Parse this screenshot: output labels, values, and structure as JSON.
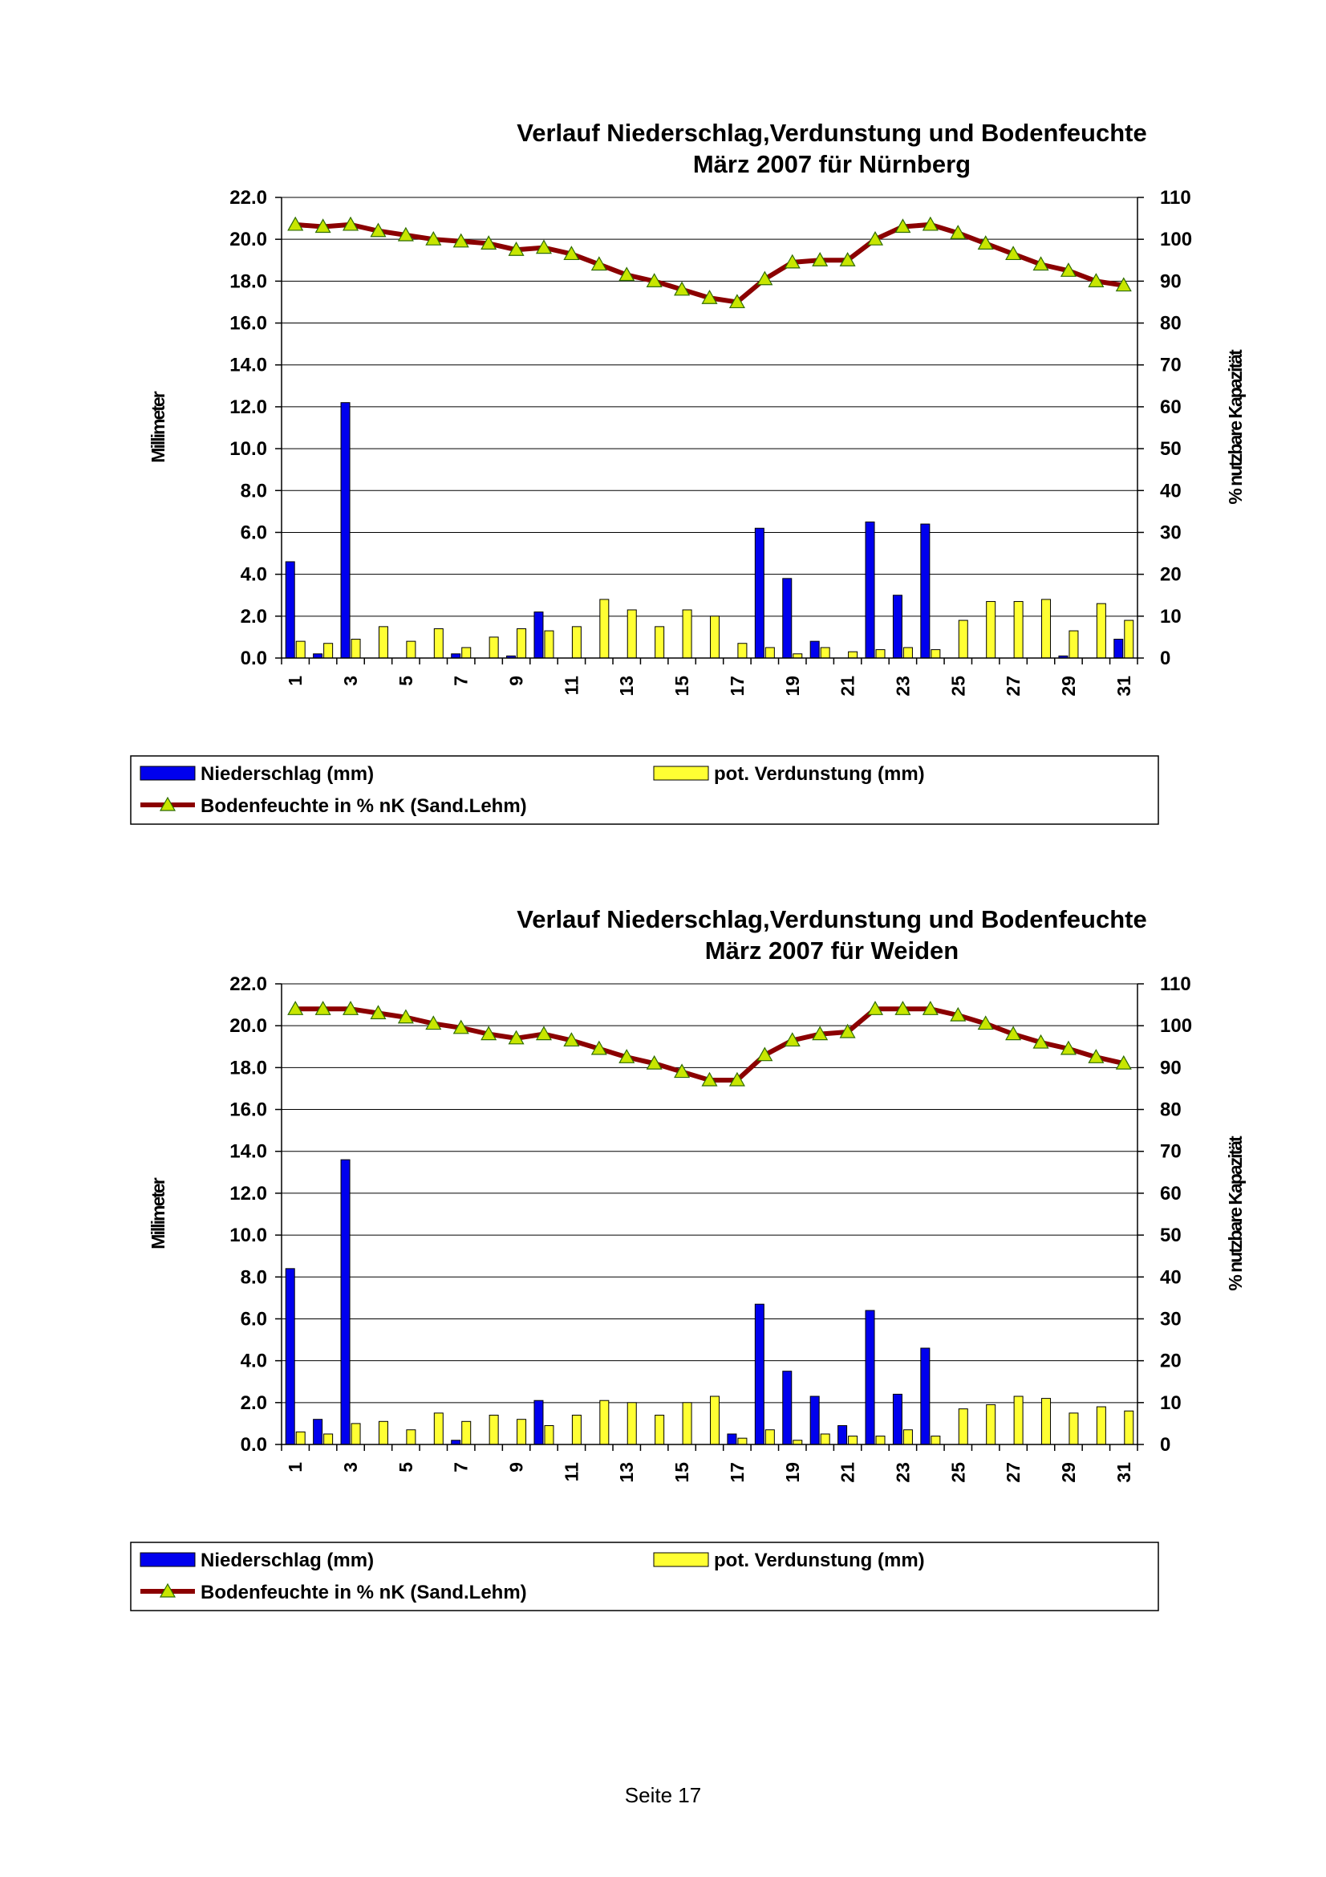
{
  "footer": {
    "page_label": "Seite 17"
  },
  "colors": {
    "precip": "#0000ee",
    "evap": "#ffff33",
    "moisture_line": "#8b0000",
    "moisture_marker": "#c8e600"
  },
  "chart_data": [
    {
      "type": "bar",
      "title": "Verlauf Niederschlag,Verdunstung und Bodenfeuchte",
      "subtitle": "März 2007 für Nürnberg",
      "ylabel": "Millimeter",
      "y2label": "% nutzbare Kapazität",
      "ylim": [
        0,
        22
      ],
      "y2lim": [
        0,
        110
      ],
      "yticks": [
        "0.0",
        "2.0",
        "4.0",
        "6.0",
        "8.0",
        "10.0",
        "12.0",
        "14.0",
        "16.0",
        "18.0",
        "20.0",
        "22.0"
      ],
      "y2ticks": [
        "0",
        "10",
        "20",
        "30",
        "40",
        "50",
        "60",
        "70",
        "80",
        "90",
        "100",
        "110"
      ],
      "grid": true,
      "legend_position": "bottom",
      "x": [
        1,
        2,
        3,
        4,
        5,
        6,
        7,
        8,
        9,
        10,
        11,
        12,
        13,
        14,
        15,
        16,
        17,
        18,
        19,
        20,
        21,
        22,
        23,
        24,
        25,
        26,
        27,
        28,
        29,
        30,
        31
      ],
      "xtick_labels": [
        "1",
        "3",
        "5",
        "7",
        "9",
        "11",
        "13",
        "15",
        "17",
        "19",
        "21",
        "23",
        "25",
        "27",
        "29",
        "31"
      ],
      "series": [
        {
          "name": "Niederschlag (mm)",
          "kind": "bar",
          "axis": "left",
          "values": [
            4.6,
            0.2,
            12.2,
            0,
            0,
            0,
            0.2,
            0,
            0.1,
            2.2,
            0,
            0,
            0,
            0,
            0,
            0,
            0,
            6.2,
            3.8,
            0.8,
            0,
            6.5,
            3.0,
            6.4,
            0,
            0,
            0,
            0,
            0.1,
            0,
            0.9
          ]
        },
        {
          "name": "pot. Verdunstung (mm)",
          "kind": "bar",
          "axis": "left",
          "values": [
            0.8,
            0.7,
            0.9,
            1.5,
            0.8,
            1.4,
            0.5,
            1.0,
            1.4,
            1.3,
            1.5,
            2.8,
            2.3,
            1.5,
            2.3,
            2.0,
            0.7,
            0.5,
            0.2,
            0.5,
            0.3,
            0.4,
            0.5,
            0.4,
            1.8,
            2.7,
            2.7,
            2.8,
            1.3,
            2.6,
            1.8
          ]
        },
        {
          "name": "Bodenfeuchte in % nK (Sand.Lehm)",
          "kind": "line",
          "axis": "right",
          "values": [
            103.5,
            103,
            103.5,
            102,
            101,
            100,
            99.5,
            99,
            97.5,
            98,
            96.5,
            94,
            91.5,
            90,
            88,
            86,
            85,
            90.5,
            94.5,
            95,
            95,
            100,
            103,
            103.5,
            101.5,
            99,
            96.5,
            94,
            92.5,
            90,
            89
          ]
        }
      ]
    },
    {
      "type": "bar",
      "title": "Verlauf Niederschlag,Verdunstung und Bodenfeuchte",
      "subtitle": "März 2007 für Weiden",
      "ylabel": "Millimeter",
      "y2label": "% nutzbare Kapazität",
      "ylim": [
        0,
        22
      ],
      "y2lim": [
        0,
        110
      ],
      "yticks": [
        "0.0",
        "2.0",
        "4.0",
        "6.0",
        "8.0",
        "10.0",
        "12.0",
        "14.0",
        "16.0",
        "18.0",
        "20.0",
        "22.0"
      ],
      "y2ticks": [
        "0",
        "10",
        "20",
        "30",
        "40",
        "50",
        "60",
        "70",
        "80",
        "90",
        "100",
        "110"
      ],
      "grid": true,
      "legend_position": "bottom",
      "x": [
        1,
        2,
        3,
        4,
        5,
        6,
        7,
        8,
        9,
        10,
        11,
        12,
        13,
        14,
        15,
        16,
        17,
        18,
        19,
        20,
        21,
        22,
        23,
        24,
        25,
        26,
        27,
        28,
        29,
        30,
        31
      ],
      "xtick_labels": [
        "1",
        "3",
        "5",
        "7",
        "9",
        "11",
        "13",
        "15",
        "17",
        "19",
        "21",
        "23",
        "25",
        "27",
        "29",
        "31"
      ],
      "series": [
        {
          "name": "Niederschlag (mm)",
          "kind": "bar",
          "axis": "left",
          "values": [
            8.4,
            1.2,
            13.6,
            0,
            0,
            0,
            0.2,
            0,
            0,
            2.1,
            0,
            0,
            0,
            0,
            0,
            0,
            0.5,
            6.7,
            3.5,
            2.3,
            0.9,
            6.4,
            2.4,
            4.6,
            0,
            0,
            0,
            0,
            0,
            0,
            0
          ]
        },
        {
          "name": "pot. Verdunstung (mm)",
          "kind": "bar",
          "axis": "left",
          "values": [
            0.6,
            0.5,
            1.0,
            1.1,
            0.7,
            1.5,
            1.1,
            1.4,
            1.2,
            0.9,
            1.4,
            2.1,
            2.0,
            1.4,
            2.0,
            2.3,
            0.3,
            0.7,
            0.2,
            0.5,
            0.4,
            0.4,
            0.7,
            0.4,
            1.7,
            1.9,
            2.3,
            2.2,
            1.5,
            1.8,
            1.6
          ]
        },
        {
          "name": "Bodenfeuchte in % nK (Sand.Lehm)",
          "kind": "line",
          "axis": "right",
          "values": [
            104,
            104,
            104,
            103,
            102,
            100.5,
            99.5,
            98,
            97,
            98,
            96.5,
            94.5,
            92.5,
            91,
            89,
            87,
            87,
            93,
            96.5,
            98,
            98.5,
            104,
            104,
            104,
            102.5,
            100.5,
            98,
            96,
            94.5,
            92.5,
            91
          ]
        }
      ]
    }
  ]
}
